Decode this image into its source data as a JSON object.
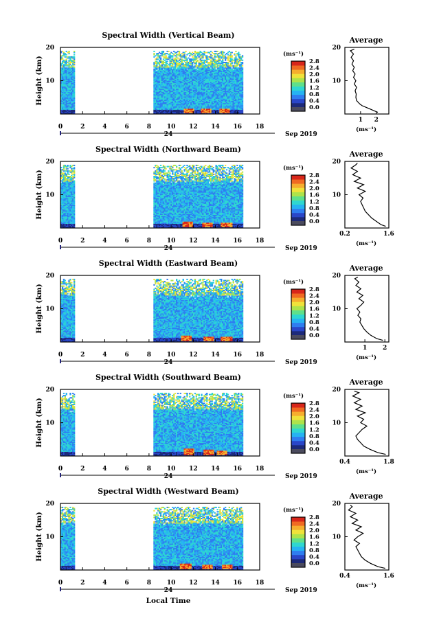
{
  "figure": {
    "date_label": "Sep 2019",
    "day_label": "24",
    "xlabel": "Local Time",
    "ylabel": "Height (km)",
    "unit_label": "(ms⁻¹)",
    "avg_title": "Average",
    "avg_xlabel": "(ms⁻¹)"
  },
  "colors": {
    "scale": [
      "#1d2a7a",
      "#2a46c8",
      "#2f7df0",
      "#26b3f2",
      "#2fd7d0",
      "#5fe08a",
      "#aee34a",
      "#f0e23a",
      "#f6ae2e",
      "#f06a22",
      "#d8261a"
    ],
    "low_band": "#4b4b5e"
  },
  "chart_data": [
    {
      "type": "heatmap",
      "title": "Spectral Width (Vertical Beam)",
      "xlim": [
        0,
        18
      ],
      "xticks": [
        0,
        2,
        4,
        6,
        8,
        10,
        12,
        14,
        16,
        18
      ],
      "ylim": [
        0,
        20
      ],
      "yticks": [
        10,
        20
      ],
      "data_coverage_hours": [
        [
          0,
          1.3
        ],
        [
          8.4,
          16.5
        ]
      ],
      "hot_spots": [
        {
          "t": 11.6,
          "h": 1.0
        },
        {
          "t": 13.2,
          "h": 0.8
        },
        {
          "t": 14.8,
          "h": 1.0
        }
      ],
      "colorbar": {
        "ticks": [
          "0.0",
          "0.4",
          "0.8",
          "1.2",
          "1.6",
          "2.0",
          "2.4",
          "2.8"
        ],
        "range": [
          0,
          2.8
        ]
      },
      "average": {
        "xlim": [
          0,
          2.8
        ],
        "xticks": [
          1,
          2
        ],
        "xtick_labels": [
          "1",
          "2"
        ],
        "h": [
          0.5,
          1.0,
          1.5,
          2.0,
          2.5,
          3.0,
          3.5,
          4.0,
          5.0,
          6.0,
          7.0,
          8.0,
          9.0,
          10.0,
          11.0,
          12.0,
          13.0,
          14.0,
          15.0,
          16.0,
          17.0,
          18.0,
          19.0,
          19.5
        ],
        "w": [
          2.1,
          1.85,
          1.6,
          1.35,
          1.1,
          0.95,
          0.85,
          0.75,
          0.7,
          0.72,
          0.65,
          0.75,
          0.6,
          0.7,
          0.55,
          0.65,
          0.5,
          0.6,
          0.45,
          0.55,
          0.4,
          0.55,
          0.35,
          0.6
        ]
      }
    },
    {
      "type": "heatmap",
      "title": "Spectral Width (Northward Beam)",
      "xlim": [
        0,
        18
      ],
      "xticks": [
        0,
        2,
        4,
        6,
        8,
        10,
        12,
        14,
        16,
        18
      ],
      "ylim": [
        0,
        20
      ],
      "yticks": [
        10,
        20
      ],
      "data_coverage_hours": [
        [
          0,
          1.3
        ],
        [
          8.4,
          16.5
        ]
      ],
      "hot_spots": [
        {
          "t": 11.5,
          "h": 1.2
        },
        {
          "t": 13.3,
          "h": 1.0
        },
        {
          "t": 15.0,
          "h": 1.0
        }
      ],
      "colorbar": {
        "ticks": [
          "0.0",
          "0.4",
          "0.8",
          "1.2",
          "1.6",
          "2.0",
          "2.4",
          "2.8"
        ],
        "range": [
          0,
          2.8
        ]
      },
      "average": {
        "xlim": [
          0.2,
          1.6
        ],
        "xticks": [
          0.2,
          1.6
        ],
        "xtick_labels": [
          "0.2",
          "1.6"
        ],
        "h": [
          0.5,
          1.0,
          2.0,
          3.0,
          4.0,
          5.0,
          6.0,
          7.0,
          8.0,
          9.0,
          10.0,
          11.0,
          12.0,
          13.0,
          14.0,
          15.0,
          16.0,
          17.0,
          18.0,
          19.0,
          19.5
        ],
        "w": [
          1.5,
          1.35,
          1.2,
          1.05,
          0.95,
          0.85,
          0.8,
          0.75,
          0.7,
          0.78,
          0.65,
          0.85,
          0.6,
          0.8,
          0.5,
          0.7,
          0.45,
          0.6,
          0.4,
          0.55,
          0.6
        ]
      }
    },
    {
      "type": "heatmap",
      "title": "Spectral Width (Eastward Beam)",
      "xlim": [
        0,
        18
      ],
      "xticks": [
        0,
        2,
        4,
        6,
        8,
        10,
        12,
        14,
        16,
        18
      ],
      "ylim": [
        0,
        20
      ],
      "yticks": [
        10,
        20
      ],
      "data_coverage_hours": [
        [
          0,
          1.3
        ],
        [
          8.4,
          16.5
        ]
      ],
      "hot_spots": [
        {
          "t": 11.4,
          "h": 1.2
        },
        {
          "t": 13.4,
          "h": 1.0
        },
        {
          "t": 15.0,
          "h": 1.0
        }
      ],
      "colorbar": {
        "ticks": [
          "0.0",
          "0.4",
          "0.8",
          "1.2",
          "1.6",
          "2.0",
          "2.4",
          "2.8"
        ],
        "range": [
          0,
          2.8
        ]
      },
      "average": {
        "xlim": [
          0,
          2.2
        ],
        "xticks": [
          1,
          2
        ],
        "xtick_labels": [
          "1",
          "2"
        ],
        "h": [
          0.5,
          1.0,
          2.0,
          3.0,
          4.0,
          5.0,
          6.0,
          7.0,
          8.0,
          9.0,
          10.0,
          11.0,
          12.0,
          13.0,
          14.0,
          15.0,
          16.0,
          17.0,
          18.0,
          19.0,
          19.5
        ],
        "w": [
          1.9,
          1.6,
          1.3,
          1.1,
          0.95,
          0.85,
          0.75,
          0.8,
          0.65,
          0.75,
          0.6,
          0.8,
          0.95,
          0.7,
          0.9,
          0.6,
          0.8,
          0.55,
          0.7,
          0.5,
          0.65
        ]
      }
    },
    {
      "type": "heatmap",
      "title": "Spectral Width (Southward Beam)",
      "xlim": [
        0,
        18
      ],
      "xticks": [
        0,
        2,
        4,
        6,
        8,
        10,
        12,
        14,
        16,
        18
      ],
      "ylim": [
        0,
        20
      ],
      "yticks": [
        10,
        20
      ],
      "data_coverage_hours": [
        [
          0,
          1.3
        ],
        [
          8.4,
          16.5
        ]
      ],
      "hot_spots": [
        {
          "t": 11.6,
          "h": 1.5
        },
        {
          "t": 13.4,
          "h": 1.2
        },
        {
          "t": 14.6,
          "h": 1.0
        }
      ],
      "colorbar": {
        "ticks": [
          "0.0",
          "0.4",
          "0.8",
          "1.2",
          "1.6",
          "2.0",
          "2.4",
          "2.8"
        ],
        "range": [
          0,
          2.8
        ]
      },
      "average": {
        "xlim": [
          0.4,
          1.8
        ],
        "xticks": [
          0.4,
          1.8
        ],
        "xtick_labels": [
          "0.4",
          "1.8"
        ],
        "h": [
          0.5,
          1.0,
          2.0,
          3.0,
          4.0,
          5.0,
          6.0,
          7.0,
          8.0,
          9.0,
          10.0,
          11.0,
          12.0,
          13.0,
          14.0,
          15.0,
          16.0,
          17.0,
          18.0,
          19.0,
          19.5
        ],
        "w": [
          1.7,
          1.45,
          1.2,
          1.0,
          0.9,
          0.8,
          0.75,
          0.85,
          0.95,
          1.1,
          0.9,
          1.0,
          0.8,
          1.05,
          0.75,
          0.95,
          0.7,
          0.9,
          0.65,
          0.85,
          0.7
        ]
      }
    },
    {
      "type": "heatmap",
      "title": "Spectral Width (Westward Beam)",
      "xlim": [
        0,
        18
      ],
      "xticks": [
        0,
        2,
        4,
        6,
        8,
        10,
        12,
        14,
        16,
        18
      ],
      "ylim": [
        0,
        20
      ],
      "yticks": [
        10,
        20
      ],
      "data_coverage_hours": [
        [
          0,
          1.3
        ],
        [
          8.4,
          16.5
        ]
      ],
      "hot_spots": [
        {
          "t": 11.3,
          "h": 1.2
        },
        {
          "t": 13.3,
          "h": 1.0
        },
        {
          "t": 15.1,
          "h": 1.0
        }
      ],
      "colorbar": {
        "ticks": [
          "0.0",
          "0.4",
          "0.8",
          "1.2",
          "1.6",
          "2.0",
          "2.4",
          "2.8"
        ],
        "range": [
          0,
          2.8
        ]
      },
      "average": {
        "xlim": [
          0.4,
          1.6
        ],
        "xticks": [
          0.4,
          1.6
        ],
        "xtick_labels": [
          "0.4",
          "1.6"
        ],
        "h": [
          0.5,
          1.0,
          2.0,
          3.0,
          4.0,
          5.0,
          6.0,
          7.0,
          8.0,
          9.0,
          10.0,
          11.0,
          12.0,
          13.0,
          14.0,
          15.0,
          16.0,
          17.0,
          18.0,
          19.0,
          19.5
        ],
        "w": [
          1.5,
          1.3,
          1.1,
          0.95,
          0.85,
          0.8,
          0.75,
          0.7,
          0.8,
          0.65,
          0.75,
          0.9,
          0.7,
          0.85,
          0.6,
          0.75,
          0.55,
          0.7,
          0.5,
          0.6,
          0.55
        ]
      }
    }
  ]
}
